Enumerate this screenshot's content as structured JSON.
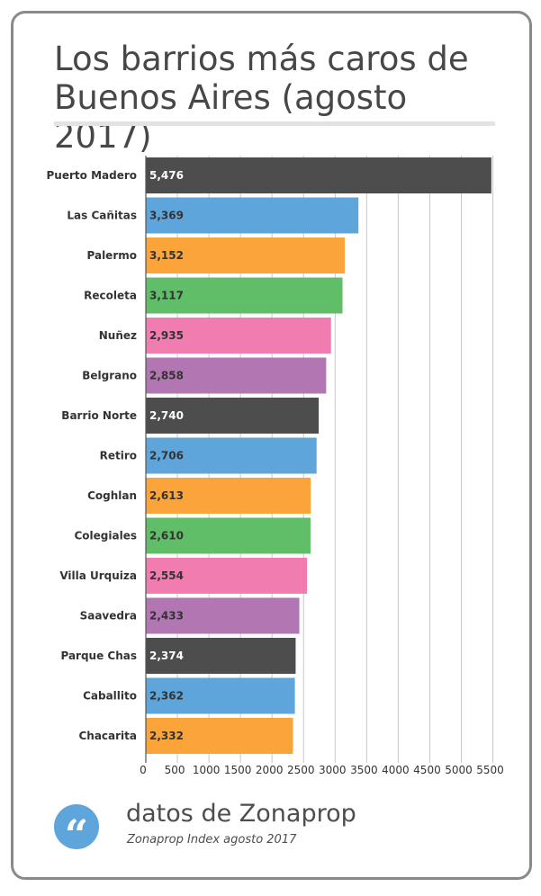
{
  "title": "Los barrios más caros de Buenos Aires (agosto 2017)",
  "footer": {
    "icon": "quote-icon",
    "source": "datos de Zonaprop",
    "subtitle": "Zonaprop Index agosto 2017"
  },
  "colors": {
    "palette": [
      "#4d4d4d",
      "#5da5da",
      "#faa43a",
      "#60bd68",
      "#f17cb0",
      "#b276b2"
    ],
    "label_dark": "#ffffff",
    "label_light": "#333333"
  },
  "chart_data": {
    "type": "bar",
    "orientation": "horizontal",
    "title": "Los barrios más caros de Buenos Aires (agosto 2017)",
    "xlabel": "",
    "ylabel": "",
    "categories": [
      "Puerto Madero",
      "Las Cañitas",
      "Palermo",
      "Recoleta",
      "Nuñez",
      "Belgrano",
      "Barrio Norte",
      "Retiro",
      "Coghlan",
      "Colegiales",
      "Villa Urquiza",
      "Saavedra",
      "Parque Chas",
      "Caballito",
      "Chacarita"
    ],
    "values": [
      5476,
      3369,
      3152,
      3117,
      2935,
      2858,
      2740,
      2706,
      2613,
      2610,
      2554,
      2433,
      2374,
      2362,
      2332
    ],
    "value_labels": [
      "5,476",
      "3,369",
      "3,152",
      "3,117",
      "2,935",
      "2,858",
      "2,740",
      "2,706",
      "2,613",
      "2,610",
      "2,554",
      "2,433",
      "2,374",
      "2,362",
      "2,332"
    ],
    "xlim": [
      0,
      5800
    ],
    "xticks": [
      0,
      500,
      1000,
      1500,
      2000,
      2500,
      3000,
      3500,
      4000,
      4500,
      5000,
      5500
    ],
    "grid": true,
    "legend": "none"
  }
}
